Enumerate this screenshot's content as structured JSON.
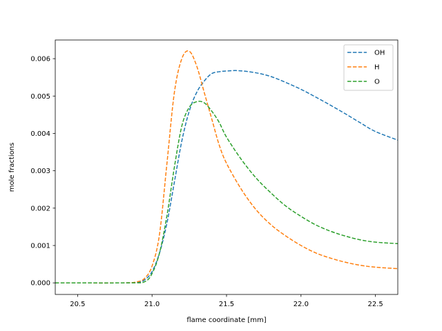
{
  "chart_data": {
    "type": "line",
    "title": "",
    "xlabel": "flame coordinate [mm]",
    "ylabel": "mole fractions",
    "xlim": [
      20.35,
      22.65
    ],
    "ylim": [
      -0.00031,
      0.0065
    ],
    "grid": false,
    "legend_position": "upper right",
    "x_ticks": [
      20.5,
      21.0,
      21.5,
      22.0,
      22.5
    ],
    "x_tick_labels": [
      "20.5",
      "21.0",
      "21.5",
      "22.0",
      "22.5"
    ],
    "y_ticks": [
      0.0,
      0.001,
      0.002,
      0.003,
      0.004,
      0.005,
      0.006
    ],
    "y_tick_labels": [
      "0.000",
      "0.001",
      "0.002",
      "0.003",
      "0.004",
      "0.005",
      "0.006"
    ],
    "series": [
      {
        "name": "OH",
        "color": "#1f77b4",
        "style": "dashed",
        "x": [
          20.35,
          20.8,
          20.9,
          20.95,
          21.0,
          21.05,
          21.1,
          21.15,
          21.2,
          21.25,
          21.3,
          21.35,
          21.4,
          21.45,
          21.5,
          21.58,
          21.7,
          21.8,
          21.9,
          22.0,
          22.1,
          22.2,
          22.3,
          22.4,
          22.5,
          22.65
        ],
        "values": [
          0.0,
          0.0,
          1e-05,
          8e-05,
          0.0003,
          0.0008,
          0.0016,
          0.0027,
          0.0038,
          0.0046,
          0.0051,
          0.0054,
          0.0056,
          0.00565,
          0.00567,
          0.00568,
          0.00562,
          0.00552,
          0.00536,
          0.00518,
          0.00497,
          0.00475,
          0.00452,
          0.00428,
          0.00405,
          0.00382
        ]
      },
      {
        "name": "H",
        "color": "#ff7f0e",
        "style": "dashed",
        "x": [
          20.35,
          20.8,
          20.9,
          20.95,
          21.0,
          21.05,
          21.1,
          21.15,
          21.2,
          21.25,
          21.3,
          21.35,
          21.4,
          21.45,
          21.5,
          21.6,
          21.7,
          21.8,
          21.9,
          22.0,
          22.1,
          22.2,
          22.3,
          22.4,
          22.5,
          22.65
        ],
        "values": [
          0.0,
          0.0,
          3e-05,
          0.00012,
          0.00045,
          0.0013,
          0.0032,
          0.0051,
          0.006,
          0.0062,
          0.0058,
          0.0051,
          0.0044,
          0.0037,
          0.0032,
          0.0025,
          0.00195,
          0.00155,
          0.00125,
          0.001,
          0.0008,
          0.00066,
          0.00055,
          0.00047,
          0.00042,
          0.00038
        ]
      },
      {
        "name": "O",
        "color": "#2ca02c",
        "style": "dashed",
        "x": [
          20.35,
          20.85,
          20.95,
          21.0,
          21.05,
          21.1,
          21.15,
          21.2,
          21.25,
          21.3,
          21.35,
          21.4,
          21.45,
          21.5,
          21.6,
          21.7,
          21.8,
          21.9,
          22.0,
          22.1,
          22.2,
          22.3,
          22.4,
          22.5,
          22.65
        ],
        "values": [
          0.0,
          0.0,
          3e-05,
          0.00025,
          0.0008,
          0.0018,
          0.0031,
          0.0042,
          0.0047,
          0.00485,
          0.00482,
          0.0046,
          0.0043,
          0.0039,
          0.0033,
          0.0028,
          0.0024,
          0.00205,
          0.00178,
          0.00155,
          0.00138,
          0.00125,
          0.00115,
          0.00109,
          0.00105
        ]
      }
    ]
  }
}
